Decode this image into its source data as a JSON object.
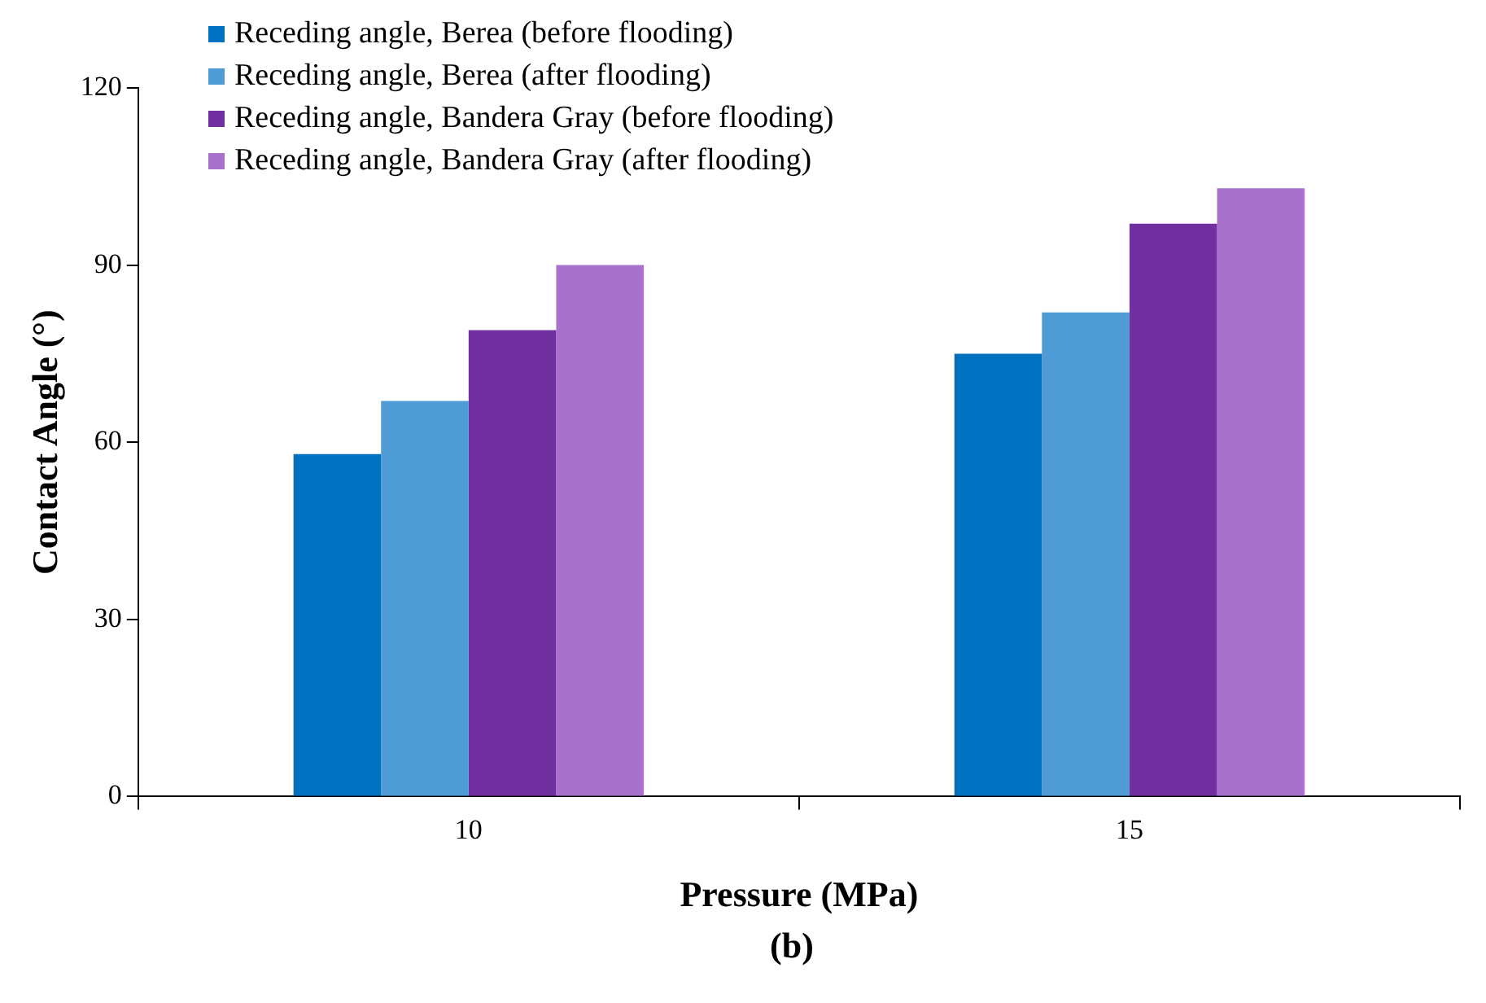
{
  "chart_data": {
    "type": "bar",
    "xlabel": "Pressure (MPa)",
    "ylabel": "Contact Angle (°)",
    "categories": [
      "10",
      "15"
    ],
    "series": [
      {
        "name": "Receding angle, Berea (before flooding)",
        "color": "#0070c0",
        "values": [
          58,
          75
        ]
      },
      {
        "name": "Receding angle, Berea (after flooding)",
        "color": "#4f9bd6",
        "values": [
          67,
          82
        ]
      },
      {
        "name": "Receding angle, Bandera Gray (before flooding)",
        "color": "#7030a0",
        "values": [
          79,
          97
        ]
      },
      {
        "name": "Receding angle, Bandera Gray (after flooding)",
        "color": "#a872cc",
        "values": [
          90,
          103
        ]
      }
    ],
    "ylim": [
      0,
      120
    ],
    "yticks": [
      0,
      30,
      60,
      90,
      120
    ],
    "legend": "top left",
    "annotations": [
      "(b)"
    ]
  }
}
